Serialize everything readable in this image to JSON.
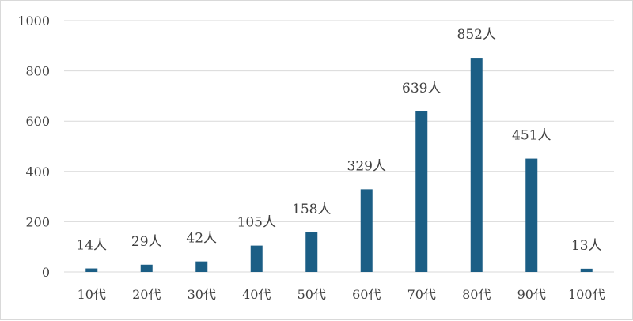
{
  "chart_data": {
    "type": "bar",
    "categories": [
      "10代",
      "20代",
      "30代",
      "40代",
      "50代",
      "60代",
      "70代",
      "80代",
      "90代",
      "100代"
    ],
    "values": [
      14,
      29,
      42,
      105,
      158,
      329,
      639,
      852,
      451,
      13
    ],
    "data_labels": [
      "14人",
      "29人",
      "42人",
      "105人",
      "158人",
      "329人",
      "639人",
      "852人",
      "451人",
      "13人"
    ],
    "y_ticks": [
      "0",
      "200",
      "400",
      "600",
      "800",
      "1000"
    ],
    "ylim": [
      0,
      1000
    ],
    "grid": true,
    "legend": "none",
    "title": "",
    "xlabel": "",
    "ylabel": "",
    "colors": {
      "bar": "#1b5e85",
      "grid": "#d9d9d9",
      "text": "#404040"
    }
  }
}
